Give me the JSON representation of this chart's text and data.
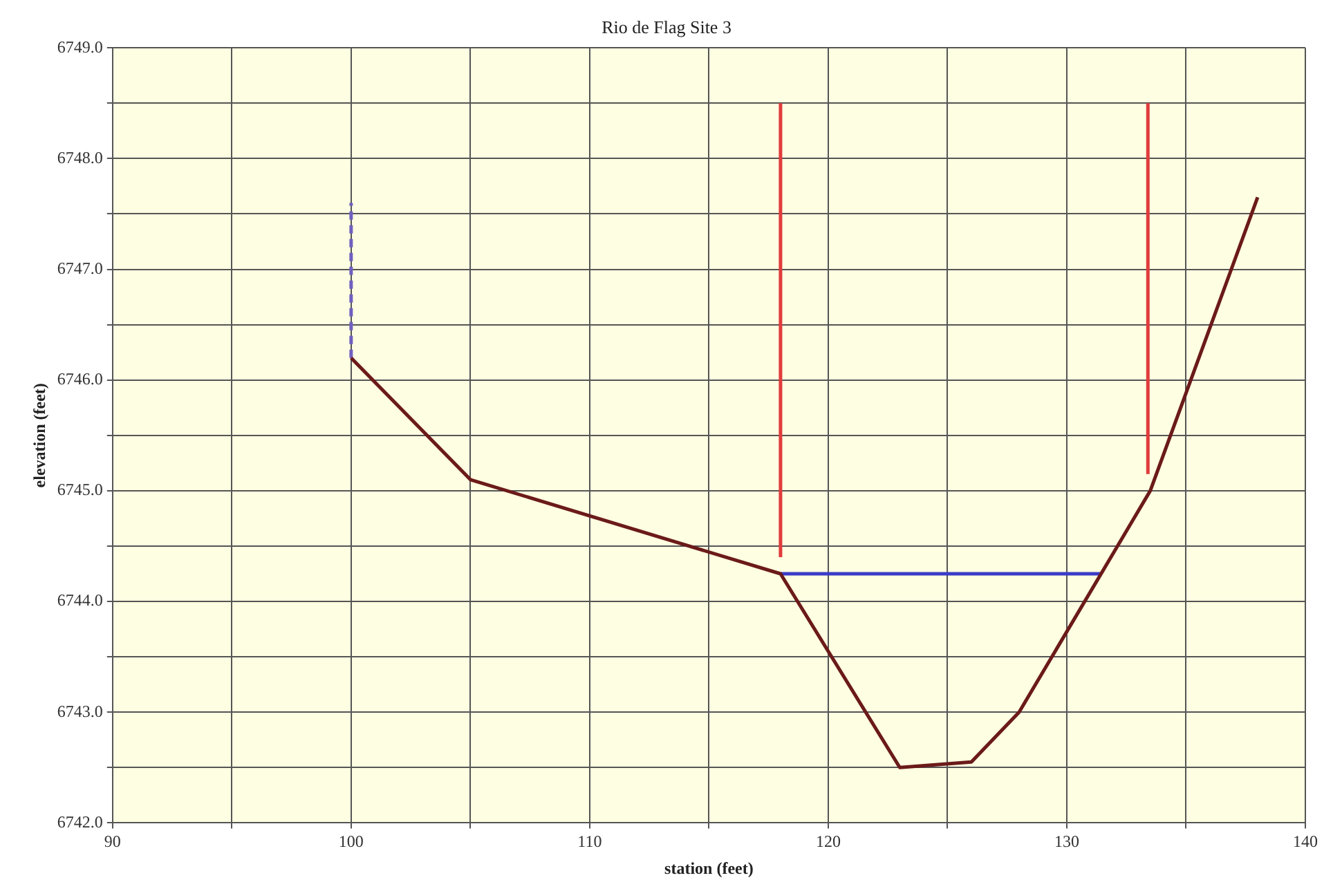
{
  "chart_data": {
    "type": "line",
    "title": "Rio de Flag Site 3",
    "xlabel": "station (feet)",
    "ylabel": "elevation (feet)",
    "xlim": [
      90,
      140
    ],
    "ylim": [
      6742,
      6749
    ],
    "xticks": [
      90,
      {
        "value": 95,
        "label": null
      },
      100,
      {
        "value": 105,
        "label": null
      },
      110,
      {
        "value": 115,
        "label": null
      },
      120,
      {
        "value": 125,
        "label": null
      },
      130,
      {
        "value": 135,
        "label": null
      },
      140
    ],
    "yticks": [
      {
        "value": 6742,
        "label": "6742.0"
      },
      {
        "value": 6742.5,
        "label": null
      },
      {
        "value": 6743,
        "label": "6743.0"
      },
      {
        "value": 6743.5,
        "label": null
      },
      {
        "value": 6744,
        "label": "6744.0"
      },
      {
        "value": 6744.5,
        "label": null
      },
      {
        "value": 6745,
        "label": "6745.0"
      },
      {
        "value": 6745.5,
        "label": null
      },
      {
        "value": 6746,
        "label": "6746.0"
      },
      {
        "value": 6746.5,
        "label": null
      },
      {
        "value": 6747,
        "label": "6747.0"
      },
      {
        "value": 6747.5,
        "label": null
      },
      {
        "value": 6748,
        "label": "6748.0"
      },
      {
        "value": 6748.5,
        "label": null
      },
      {
        "value": 6749,
        "label": "6749.0"
      }
    ],
    "grid": true,
    "legend": false,
    "marker": "none",
    "series": [
      {
        "color": "#6b1a1a",
        "x": [
          100,
          105,
          118,
          123,
          126,
          128,
          133.5,
          138
        ],
        "values": [
          6746.2,
          6745.1,
          6744.25,
          6742.5,
          6742.55,
          6743,
          6745,
          6747.65
        ]
      },
      {
        "color": "#3b3bc8",
        "x": [
          118,
          131.4
        ],
        "values": [
          6744.25,
          6744.25
        ]
      },
      {
        "color": "#e03c3c",
        "x": [
          118,
          118
        ],
        "values": [
          6744.4,
          6748.5
        ]
      },
      {
        "color": "#e03c3c",
        "x": [
          133.4,
          133.4
        ],
        "values": [
          6745.15,
          6748.5
        ]
      },
      {
        "color": "#7060c0",
        "line_style": "dashed",
        "x": [
          100,
          100
        ],
        "values": [
          6746.2,
          6747.6
        ]
      }
    ]
  }
}
